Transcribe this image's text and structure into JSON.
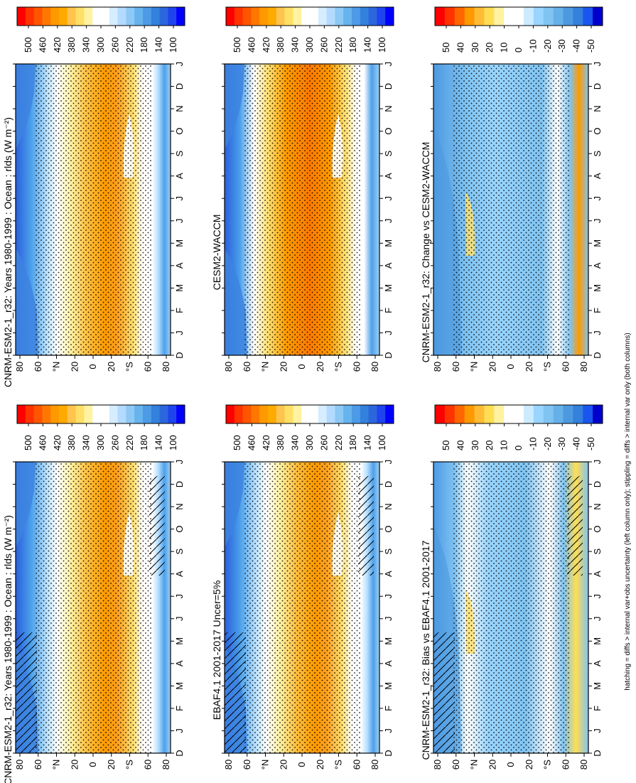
{
  "figure": {
    "footnote": "hatching = diffs > internal var+obs uncertainty (left column only); stippling = diffs > internal var only (both columns)"
  },
  "colors": {
    "abs": [
      "#ff0000",
      "#ff3300",
      "#ff5500",
      "#ff7700",
      "#ff9900",
      "#ffaa00",
      "#ffc44d",
      "#ffe066",
      "#fff2a0",
      "#ffffff",
      "#ffffff",
      "#d6ecff",
      "#b3daff",
      "#8ec8f5",
      "#66b3ee",
      "#4d9be6",
      "#3380dd",
      "#2b66dd",
      "#1f44ee",
      "#0000ff"
    ],
    "diff": [
      "#ff0000",
      "#ff3300",
      "#ff6600",
      "#ff9900",
      "#ffbb33",
      "#ffdd55",
      "#fff2a0",
      "#ffffff",
      "#ffffff",
      "#ccebff",
      "#99d5ff",
      "#80c4f2",
      "#66b0ea",
      "#4d99e0",
      "#3380dd",
      "#1a55ee",
      "#0000cc"
    ]
  },
  "chart_data": [
    {
      "type": "heatmap",
      "id": "panel-model",
      "title": "CNRM-ESM2-1_r32: Years 1980-1999 : Ocean : rlds (W m⁻²)",
      "x": [
        "D",
        "J",
        "F",
        "M",
        "A",
        "M",
        "J",
        "J",
        "A",
        "S",
        "O",
        "N",
        "D",
        "J"
      ],
      "y_ticks": [
        "80",
        "60",
        "°N",
        "20",
        "0",
        "20",
        "°S",
        "60",
        "80"
      ],
      "colorbar_ticks": [
        "500",
        "460",
        "420",
        "380",
        "340",
        "300",
        "260",
        "220",
        "180",
        "140",
        "100"
      ],
      "overlay": "hatching+stippling"
    },
    {
      "type": "heatmap",
      "id": "panel-model-2",
      "title": "CNRM-ESM2-1_r32: Years 1980-1999 : Ocean : rlds (W m⁻²)",
      "x": [
        "D",
        "J",
        "F",
        "M",
        "A",
        "M",
        "J",
        "J",
        "A",
        "S",
        "O",
        "N",
        "D",
        "J"
      ],
      "y_ticks": [
        "80",
        "60",
        "°N",
        "20",
        "0",
        "20",
        "°S",
        "60",
        "80"
      ],
      "colorbar_ticks": [
        "500",
        "460",
        "420",
        "380",
        "340",
        "300",
        "260",
        "220",
        "180",
        "140",
        "100"
      ],
      "overlay": "stippling"
    },
    {
      "type": "heatmap",
      "id": "panel-obs",
      "title": "EBAF4.1 2001-2017 Uncer=5%",
      "x": [
        "D",
        "J",
        "F",
        "M",
        "A",
        "M",
        "J",
        "J",
        "A",
        "S",
        "O",
        "N",
        "D",
        "J"
      ],
      "y_ticks": [
        "80",
        "60",
        "°N",
        "20",
        "0",
        "20",
        "°S",
        "60",
        "80"
      ],
      "colorbar_ticks": [
        "500",
        "460",
        "420",
        "380",
        "340",
        "300",
        "260",
        "220",
        "180",
        "140",
        "100"
      ],
      "overlay": "hatching+stippling"
    },
    {
      "type": "heatmap",
      "id": "panel-ref",
      "title": "CESM2-WACCM",
      "x": [
        "D",
        "J",
        "F",
        "M",
        "A",
        "M",
        "J",
        "J",
        "A",
        "S",
        "O",
        "N",
        "D",
        "J"
      ],
      "y_ticks": [
        "80",
        "60",
        "°N",
        "20",
        "0",
        "20",
        "°S",
        "60",
        "80"
      ],
      "colorbar_ticks": [
        "500",
        "460",
        "420",
        "380",
        "340",
        "300",
        "260",
        "220",
        "180",
        "140",
        "100"
      ],
      "overlay": "stippling"
    },
    {
      "type": "heatmap",
      "id": "panel-bias",
      "title": "CNRM-ESM2-1_r32: Bias vs EBAF4.1 2001-2017",
      "x": [
        "D",
        "J",
        "F",
        "M",
        "A",
        "M",
        "J",
        "J",
        "A",
        "S",
        "O",
        "N",
        "D",
        "J"
      ],
      "y_ticks": [
        "80",
        "60",
        "°N",
        "20",
        "0",
        "20",
        "°S",
        "60",
        "80"
      ],
      "colorbar_ticks": [
        "50",
        "40",
        "30",
        "20",
        "10",
        "0",
        "-10",
        "-20",
        "-30",
        "-40",
        "-50"
      ],
      "overlay": "hatching+stippling"
    },
    {
      "type": "heatmap",
      "id": "panel-change",
      "title": "CNRM-ESM2-1_r32: Change vs CESM2-WACCM",
      "x": [
        "D",
        "J",
        "F",
        "M",
        "A",
        "M",
        "J",
        "J",
        "A",
        "S",
        "O",
        "N",
        "D",
        "J"
      ],
      "y_ticks": [
        "80",
        "60",
        "°N",
        "20",
        "0",
        "20",
        "°S",
        "60",
        "80"
      ],
      "colorbar_ticks": [
        "50",
        "40",
        "30",
        "20",
        "10",
        "0",
        "-10",
        "-20",
        "-30",
        "-40",
        "-50"
      ],
      "overlay": "stippling"
    }
  ]
}
